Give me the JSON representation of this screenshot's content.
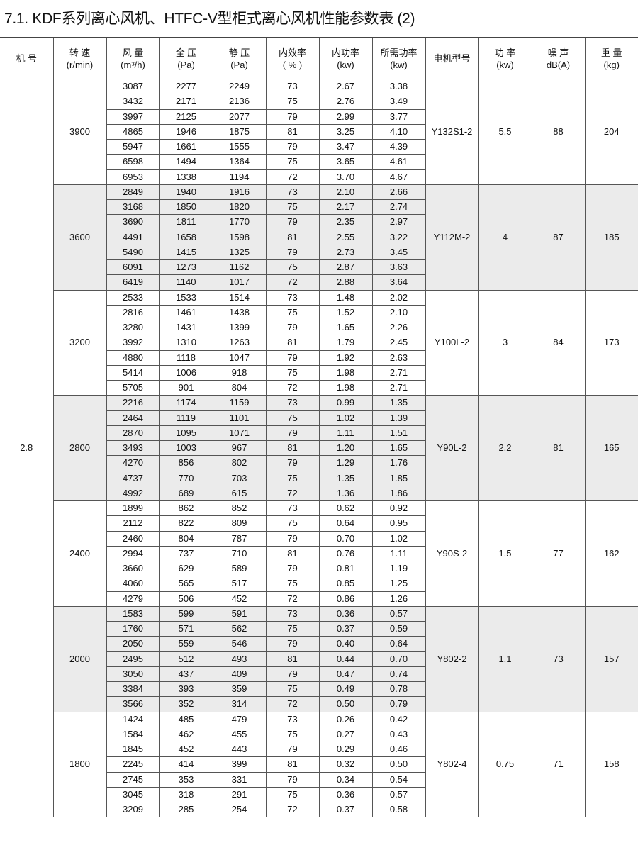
{
  "title": "7.1. KDF系列离心风机、HTFC-V型柜式离心风机性能参数表 (2)",
  "headers": [
    {
      "line1": "机  号",
      "line2": ""
    },
    {
      "line1": "转  速",
      "line2": "(r/min)"
    },
    {
      "line1": "风  量",
      "line2": "(m³/h)"
    },
    {
      "line1": "全  压",
      "line2": "(Pa)"
    },
    {
      "line1": "静  压",
      "line2": "(Pa)"
    },
    {
      "line1": "内效率",
      "line2": "( % )"
    },
    {
      "line1": "内功率",
      "line2": "(kw)"
    },
    {
      "line1": "所需功率",
      "line2": "(kw)"
    },
    {
      "line1": "电机型号",
      "line2": ""
    },
    {
      "line1": "功  率",
      "line2": "(kw)"
    },
    {
      "line1": "噪  声",
      "line2": "dB(A)"
    },
    {
      "line1": "重  量",
      "line2": "(kg)"
    }
  ],
  "machine_no": "2.8",
  "shaded_color": "#ebebeb",
  "groups": [
    {
      "speed": "3900",
      "motor": "Y132S1-2",
      "power": "5.5",
      "noise": "88",
      "weight": "204",
      "shaded": false,
      "rows": [
        [
          "3087",
          "2277",
          "2249",
          "73",
          "2.67",
          "3.38"
        ],
        [
          "3432",
          "2171",
          "2136",
          "75",
          "2.76",
          "3.49"
        ],
        [
          "3997",
          "2125",
          "2077",
          "79",
          "2.99",
          "3.77"
        ],
        [
          "4865",
          "1946",
          "1875",
          "81",
          "3.25",
          "4.10"
        ],
        [
          "5947",
          "1661",
          "1555",
          "79",
          "3.47",
          "4.39"
        ],
        [
          "6598",
          "1494",
          "1364",
          "75",
          "3.65",
          "4.61"
        ],
        [
          "6953",
          "1338",
          "1194",
          "72",
          "3.70",
          "4.67"
        ]
      ]
    },
    {
      "speed": "3600",
      "motor": "Y112M-2",
      "power": "4",
      "noise": "87",
      "weight": "185",
      "shaded": true,
      "rows": [
        [
          "2849",
          "1940",
          "1916",
          "73",
          "2.10",
          "2.66"
        ],
        [
          "3168",
          "1850",
          "1820",
          "75",
          "2.17",
          "2.74"
        ],
        [
          "3690",
          "1811",
          "1770",
          "79",
          "2.35",
          "2.97"
        ],
        [
          "4491",
          "1658",
          "1598",
          "81",
          "2.55",
          "3.22"
        ],
        [
          "5490",
          "1415",
          "1325",
          "79",
          "2.73",
          "3.45"
        ],
        [
          "6091",
          "1273",
          "1162",
          "75",
          "2.87",
          "3.63"
        ],
        [
          "6419",
          "1140",
          "1017",
          "72",
          "2.88",
          "3.64"
        ]
      ]
    },
    {
      "speed": "3200",
      "motor": "Y100L-2",
      "power": "3",
      "noise": "84",
      "weight": "173",
      "shaded": false,
      "rows": [
        [
          "2533",
          "1533",
          "1514",
          "73",
          "1.48",
          "2.02"
        ],
        [
          "2816",
          "1461",
          "1438",
          "75",
          "1.52",
          "2.10"
        ],
        [
          "3280",
          "1431",
          "1399",
          "79",
          "1.65",
          "2.26"
        ],
        [
          "3992",
          "1310",
          "1263",
          "81",
          "1.79",
          "2.45"
        ],
        [
          "4880",
          "1118",
          "1047",
          "79",
          "1.92",
          "2.63"
        ],
        [
          "5414",
          "1006",
          "918",
          "75",
          "1.98",
          "2.71"
        ],
        [
          "5705",
          "901",
          "804",
          "72",
          "1.98",
          "2.71"
        ]
      ]
    },
    {
      "speed": "2800",
      "motor": "Y90L-2",
      "power": "2.2",
      "noise": "81",
      "weight": "165",
      "shaded": true,
      "rows": [
        [
          "2216",
          "1174",
          "1159",
          "73",
          "0.99",
          "1.35"
        ],
        [
          "2464",
          "1119",
          "1101",
          "75",
          "1.02",
          "1.39"
        ],
        [
          "2870",
          "1095",
          "1071",
          "79",
          "1.11",
          "1.51"
        ],
        [
          "3493",
          "1003",
          "967",
          "81",
          "1.20",
          "1.65"
        ],
        [
          "4270",
          "856",
          "802",
          "79",
          "1.29",
          "1.76"
        ],
        [
          "4737",
          "770",
          "703",
          "75",
          "1.35",
          "1.85"
        ],
        [
          "4992",
          "689",
          "615",
          "72",
          "1.36",
          "1.86"
        ]
      ]
    },
    {
      "speed": "2400",
      "motor": "Y90S-2",
      "power": "1.5",
      "noise": "77",
      "weight": "162",
      "shaded": false,
      "rows": [
        [
          "1899",
          "862",
          "852",
          "73",
          "0.62",
          "0.92"
        ],
        [
          "2112",
          "822",
          "809",
          "75",
          "0.64",
          "0.95"
        ],
        [
          "2460",
          "804",
          "787",
          "79",
          "0.70",
          "1.02"
        ],
        [
          "2994",
          "737",
          "710",
          "81",
          "0.76",
          "1.11"
        ],
        [
          "3660",
          "629",
          "589",
          "79",
          "0.81",
          "1.19"
        ],
        [
          "4060",
          "565",
          "517",
          "75",
          "0.85",
          "1.25"
        ],
        [
          "4279",
          "506",
          "452",
          "72",
          "0.86",
          "1.26"
        ]
      ]
    },
    {
      "speed": "2000",
      "motor": "Y802-2",
      "power": "1.1",
      "noise": "73",
      "weight": "157",
      "shaded": true,
      "rows": [
        [
          "1583",
          "599",
          "591",
          "73",
          "0.36",
          "0.57"
        ],
        [
          "1760",
          "571",
          "562",
          "75",
          "0.37",
          "0.59"
        ],
        [
          "2050",
          "559",
          "546",
          "79",
          "0.40",
          "0.64"
        ],
        [
          "2495",
          "512",
          "493",
          "81",
          "0.44",
          "0.70"
        ],
        [
          "3050",
          "437",
          "409",
          "79",
          "0.47",
          "0.74"
        ],
        [
          "3384",
          "393",
          "359",
          "75",
          "0.49",
          "0.78"
        ],
        [
          "3566",
          "352",
          "314",
          "72",
          "0.50",
          "0.79"
        ]
      ]
    },
    {
      "speed": "1800",
      "motor": "Y802-4",
      "power": "0.75",
      "noise": "71",
      "weight": "158",
      "shaded": false,
      "rows": [
        [
          "1424",
          "485",
          "479",
          "73",
          "0.26",
          "0.42"
        ],
        [
          "1584",
          "462",
          "455",
          "75",
          "0.27",
          "0.43"
        ],
        [
          "1845",
          "452",
          "443",
          "79",
          "0.29",
          "0.46"
        ],
        [
          "2245",
          "414",
          "399",
          "81",
          "0.32",
          "0.50"
        ],
        [
          "2745",
          "353",
          "331",
          "79",
          "0.34",
          "0.54"
        ],
        [
          "3045",
          "318",
          "291",
          "75",
          "0.36",
          "0.57"
        ],
        [
          "3209",
          "285",
          "254",
          "72",
          "0.37",
          "0.58"
        ]
      ]
    }
  ]
}
